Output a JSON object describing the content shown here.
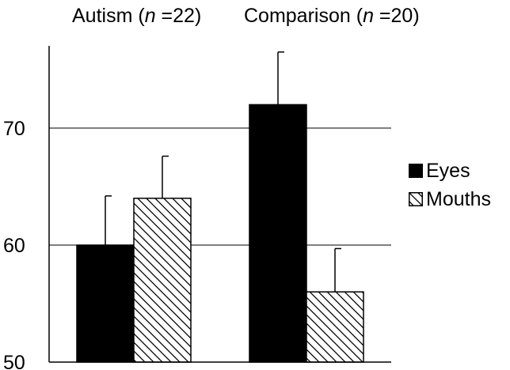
{
  "chart_data": {
    "type": "bar",
    "title": "",
    "xlabel": "",
    "ylabel": "",
    "groups": [
      {
        "label_main": "Autism (",
        "label_n": "n",
        "label_rest": " =22)"
      },
      {
        "label_main": "Comparison (",
        "label_n": "n",
        "label_rest": " =20)"
      }
    ],
    "series": [
      {
        "name": "Eyes",
        "values": [
          60,
          72
        ],
        "error": [
          4.2,
          4.5
        ],
        "fill": "solid-black"
      },
      {
        "name": "Mouths",
        "values": [
          64,
          56
        ],
        "error": [
          3.6,
          3.7
        ],
        "fill": "diagonal-hatch"
      }
    ],
    "ylim": [
      50,
      77
    ],
    "yticks": [
      50,
      60,
      70
    ],
    "grid": true,
    "legend_position": "right"
  },
  "colors": {
    "bar_fill": "#000000",
    "hatch": "#000000",
    "axis": "#000000"
  }
}
